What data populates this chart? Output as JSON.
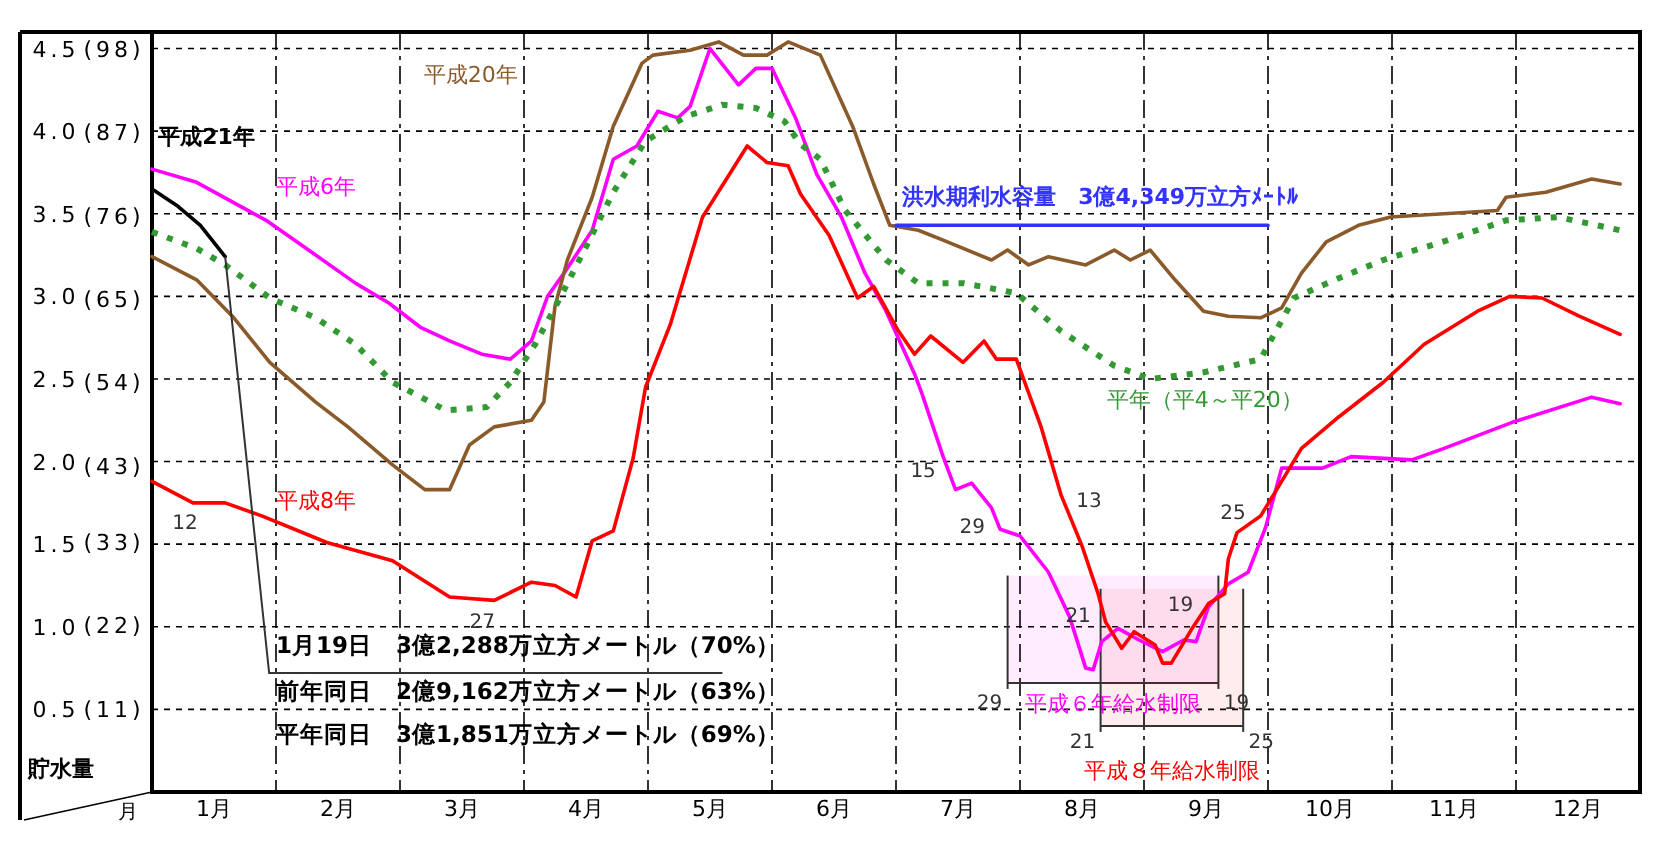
{
  "chart_data": {
    "type": "line",
    "xlabel": "月",
    "ylabel": "貯水量",
    "xlim": [
      0.5,
      12.5
    ],
    "ylim": [
      0,
      4.6
    ],
    "xticks": [
      {
        "value": 0.5,
        "label": null
      },
      {
        "value": 1,
        "label": "1月"
      },
      {
        "value": 1.5,
        "label": null
      },
      {
        "value": 2,
        "label": "2月"
      },
      {
        "value": 2.5,
        "label": null
      },
      {
        "value": 3,
        "label": "3月"
      },
      {
        "value": 3.5,
        "label": null
      },
      {
        "value": 4,
        "label": "4月"
      },
      {
        "value": 4.5,
        "label": null
      },
      {
        "value": 5,
        "label": "5月"
      },
      {
        "value": 5.5,
        "label": null
      },
      {
        "value": 6,
        "label": "6月"
      },
      {
        "value": 6.5,
        "label": null
      },
      {
        "value": 7,
        "label": "7月"
      },
      {
        "value": 7.5,
        "label": null
      },
      {
        "value": 8,
        "label": "8月"
      },
      {
        "value": 8.5,
        "label": null
      },
      {
        "value": 9,
        "label": "9月"
      },
      {
        "value": 9.5,
        "label": null
      },
      {
        "value": 10,
        "label": "10月"
      },
      {
        "value": 10.5,
        "label": null
      },
      {
        "value": 11,
        "label": "11月"
      },
      {
        "value": 11.5,
        "label": null
      },
      {
        "value": 12,
        "label": "12月"
      },
      {
        "value": 12.5,
        "label": null
      }
    ],
    "yticks": [
      {
        "value": 0.5,
        "label": "0.5"
      },
      {
        "value": 1,
        "label": "1.0"
      },
      {
        "value": 1.5,
        "label": "1.5"
      },
      {
        "value": 2,
        "label": "2.0"
      },
      {
        "value": 2.5,
        "label": "2.5"
      },
      {
        "value": 3,
        "label": "3.0"
      },
      {
        "value": 3.5,
        "label": "3.5"
      },
      {
        "value": 4,
        "label": "4.0"
      },
      {
        "value": 4.5,
        "label": "4.5"
      }
    ],
    "y2lim": [
      0,
      100.2
    ],
    "y2ticks": [
      {
        "value": 11,
        "label": "(11)"
      },
      {
        "value": 22,
        "label": "(22)"
      },
      {
        "value": 33,
        "label": "(33)"
      },
      {
        "value": 43,
        "label": "(43)"
      },
      {
        "value": 54,
        "label": "(54)"
      },
      {
        "value": 65,
        "label": "(65)"
      },
      {
        "value": 76,
        "label": "(76)"
      },
      {
        "value": 87,
        "label": "(87)"
      },
      {
        "value": 98,
        "label": "(98)"
      }
    ],
    "grid": true,
    "marker": "none",
    "series": [
      {
        "name": "平成21年",
        "color": "#000000",
        "x": [
          0.5,
          0.7,
          0.89,
          1.09
        ],
        "values": [
          3.65,
          3.55,
          3.43,
          3.24
        ]
      },
      {
        "name": "平成6年",
        "color": "#ff00ff",
        "x": [
          0.5,
          0.86,
          1.42,
          1.82,
          2.14,
          2.41,
          2.67,
          2.9,
          3.16,
          3.39,
          3.56,
          3.69,
          3.85,
          4.05,
          4.22,
          4.41,
          4.58,
          4.74,
          4.84,
          5.0,
          5.23,
          5.37,
          5.5,
          5.69,
          5.86,
          6.06,
          6.25,
          6.42,
          6.65,
          6.71,
          6.88,
          6.98,
          7.11,
          7.27,
          7.34,
          7.5,
          7.73,
          7.9,
          8.03,
          8.09,
          8.16,
          8.29,
          8.46,
          8.65,
          8.82,
          8.92,
          9.02,
          9.18,
          9.34,
          9.48,
          9.61,
          9.94,
          10.17,
          10.66,
          10.92,
          11.48,
          12.11,
          12.34
        ],
        "values": [
          3.77,
          3.69,
          3.46,
          3.25,
          3.08,
          2.96,
          2.81,
          2.73,
          2.65,
          2.62,
          2.73,
          3.0,
          3.17,
          3.4,
          3.83,
          3.91,
          4.12,
          4.08,
          4.15,
          4.5,
          4.28,
          4.38,
          4.38,
          4.08,
          3.74,
          3.48,
          3.14,
          2.91,
          2.53,
          2.41,
          2.03,
          1.83,
          1.87,
          1.72,
          1.59,
          1.55,
          1.33,
          1.06,
          0.75,
          0.74,
          0.91,
          0.99,
          0.92,
          0.85,
          0.92,
          0.91,
          1.12,
          1.26,
          1.33,
          1.6,
          1.96,
          1.96,
          2.03,
          2.01,
          2.08,
          2.24,
          2.39,
          2.35
        ]
      },
      {
        "name": "平成8年",
        "color": "#ff0000",
        "x": [
          0.5,
          0.83,
          1.09,
          1.39,
          1.91,
          2.44,
          2.9,
          3.26,
          3.56,
          3.75,
          3.92,
          4.05,
          4.22,
          4.38,
          4.48,
          4.68,
          4.94,
          5.3,
          5.46,
          5.63,
          5.73,
          5.96,
          6.19,
          6.32,
          6.52,
          6.65,
          6.78,
          7.04,
          7.21,
          7.31,
          7.47,
          7.67,
          7.83,
          8.0,
          8.13,
          8.19,
          8.32,
          8.42,
          8.59,
          8.65,
          8.72,
          8.88,
          9.02,
          9.15,
          9.18,
          9.25,
          9.44,
          9.57,
          9.77,
          10.07,
          10.43,
          10.76,
          11.19,
          11.45,
          11.71,
          12.01,
          12.34
        ],
        "values": [
          1.88,
          1.75,
          1.75,
          1.67,
          1.51,
          1.4,
          1.18,
          1.16,
          1.27,
          1.25,
          1.18,
          1.52,
          1.58,
          2.02,
          2.45,
          2.83,
          3.48,
          3.91,
          3.81,
          3.79,
          3.62,
          3.37,
          2.99,
          3.06,
          2.79,
          2.65,
          2.76,
          2.6,
          2.73,
          2.62,
          2.62,
          2.21,
          1.8,
          1.49,
          1.2,
          1.03,
          0.87,
          0.97,
          0.89,
          0.78,
          0.78,
          0.98,
          1.14,
          1.2,
          1.41,
          1.57,
          1.67,
          1.83,
          2.08,
          2.27,
          2.48,
          2.71,
          2.91,
          3.0,
          2.99,
          2.88,
          2.77
        ]
      },
      {
        "name": "平成20年",
        "color": "#8b5a2b",
        "x": [
          0.5,
          0.86,
          1.16,
          1.45,
          1.82,
          2.08,
          2.44,
          2.7,
          2.9,
          3.06,
          3.26,
          3.56,
          3.66,
          3.75,
          3.85,
          4.05,
          4.22,
          4.45,
          4.54,
          4.84,
          5.07,
          5.27,
          5.46,
          5.63,
          5.89,
          6.15,
          6.32,
          6.45,
          6.68,
          6.88,
          7.27,
          7.4,
          7.57,
          7.73,
          8.03,
          8.26,
          8.39,
          8.55,
          8.75,
          8.98,
          9.18,
          9.44,
          9.61,
          9.77,
          9.97,
          10.23,
          10.49,
          11.35,
          11.42,
          11.74,
          12.11,
          12.34
        ],
        "values": [
          3.24,
          3.1,
          2.87,
          2.6,
          2.36,
          2.21,
          1.98,
          1.83,
          1.83,
          2.1,
          2.21,
          2.25,
          2.36,
          2.94,
          3.22,
          3.6,
          4.03,
          4.41,
          4.46,
          4.49,
          4.54,
          4.46,
          4.46,
          4.54,
          4.46,
          4.03,
          3.68,
          3.43,
          3.4,
          3.34,
          3.22,
          3.28,
          3.19,
          3.24,
          3.19,
          3.28,
          3.22,
          3.28,
          3.1,
          2.91,
          2.88,
          2.87,
          2.93,
          3.14,
          3.33,
          3.43,
          3.48,
          3.52,
          3.6,
          3.63,
          3.71,
          3.68
        ]
      },
      {
        "name": "平年（平4～平20）",
        "color": "#339933",
        "line_style": "dotted",
        "x": [
          0.5,
          0.86,
          1.09,
          1.45,
          1.82,
          2.14,
          2.44,
          2.87,
          3.2,
          3.39,
          3.59,
          3.79,
          4.02,
          4.22,
          4.48,
          4.81,
          5.1,
          5.37,
          5.6,
          5.73,
          5.89,
          6.09,
          6.42,
          6.68,
          7.04,
          7.47,
          7.83,
          8.26,
          8.55,
          8.98,
          9.44,
          9.71,
          10.07,
          10.43,
          10.95,
          11.42,
          11.84,
          12.34
        ],
        "values": [
          3.39,
          3.29,
          3.19,
          2.99,
          2.87,
          2.71,
          2.48,
          2.31,
          2.33,
          2.48,
          2.71,
          2.99,
          3.33,
          3.63,
          3.94,
          4.09,
          4.16,
          4.14,
          4.06,
          3.92,
          3.83,
          3.52,
          3.22,
          3.08,
          3.08,
          3.02,
          2.79,
          2.58,
          2.5,
          2.54,
          2.62,
          2.99,
          3.11,
          3.22,
          3.34,
          3.46,
          3.48,
          3.4
        ]
      },
      {
        "name": "洪水期利水容量　3億4,349万立方ﾒｰﾄﾙ",
        "color": "#3333ff",
        "x": [
          6.5,
          9.5
        ],
        "values": [
          3.43,
          3.43
        ]
      }
    ],
    "bands": [
      {
        "axis": "x",
        "from": 7.4,
        "to": 9.1,
        "label": "平成６年給水制限",
        "color": "#ff00ff"
      },
      {
        "axis": "x",
        "from": 8.15,
        "to": 9.3,
        "label": "平成８年給水制限",
        "color": "#ff0000"
      }
    ],
    "annotations": [
      "1月19日　3億2,288万立方メートル（70%）",
      "前年同日　2億9,162万立方メートル（63%）",
      "平年同日　3億1,851万立方メートル（69%）",
      {
        "text": "12",
        "x": 0.83,
        "y": 1.75
      },
      {
        "text": "27",
        "x": 3.26,
        "y": 1.16
      },
      {
        "text": "13",
        "x": 7.83,
        "y": 1.8
      },
      {
        "text": "21",
        "x": 8.13,
        "y": 1.2
      },
      {
        "text": "25",
        "x": 9.25,
        "y": 1.57
      },
      {
        "text": "15",
        "x": 6.88,
        "y": 2.03
      },
      {
        "text": "29",
        "x": 7.34,
        "y": 1.59
      },
      {
        "text": "19",
        "x": 9.02,
        "y": 1.12
      },
      {
        "text": "29",
        "x": 7.4,
        "y": 0.66
      },
      {
        "text": "19",
        "x": 9.1,
        "y": 0.66
      },
      {
        "text": "21",
        "x": 8.15,
        "y": 0.4
      },
      {
        "text": "25",
        "x": 9.3,
        "y": 0.4
      }
    ]
  }
}
